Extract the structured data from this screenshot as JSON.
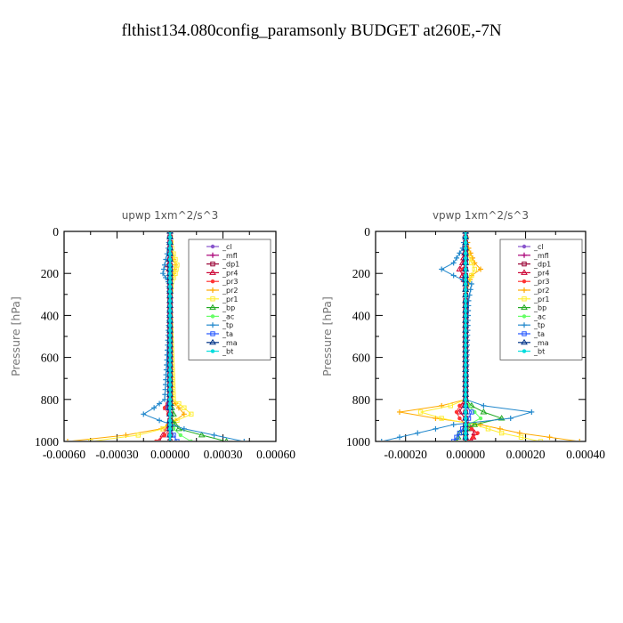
{
  "figure": {
    "title": "flthist134.080config_paramsonly  BUDGET at260E,-7N"
  },
  "chart_data": [
    {
      "type": "line",
      "title": "upwp   1xm^2/s^3",
      "ylabel": "Pressure [hPa]",
      "xlim": [
        -0.0006,
        0.0006
      ],
      "ylim": [
        1000,
        0
      ],
      "y_inverted": true,
      "xticks": [
        "-0.00060",
        "-0.00030",
        "0.00000",
        "0.00030",
        "0.00060"
      ],
      "yticks": [
        "0",
        "200",
        "400",
        "600",
        "800",
        "1000"
      ],
      "legend_position": "top-right",
      "y": [
        0,
        80,
        160,
        200,
        240,
        330,
        800,
        840,
        870,
        900,
        940,
        970,
        1000
      ],
      "series": [
        {
          "name": "_cl",
          "color": "#8855cc",
          "values": [
            0,
            0,
            0,
            0,
            0,
            0,
            0,
            0,
            0,
            0,
            0,
            0,
            0
          ]
        },
        {
          "name": "_mfl",
          "color": "#aa0077",
          "values": [
            0,
            0,
            0,
            0,
            0,
            0,
            0,
            0,
            0,
            0,
            0,
            0,
            0
          ]
        },
        {
          "name": "_dp1",
          "color": "#990033",
          "values": [
            0,
            0,
            0,
            0,
            0,
            0,
            0,
            0,
            0,
            0,
            0,
            0,
            0
          ]
        },
        {
          "name": "_pr4",
          "color": "#cc0033",
          "values": [
            0,
            0,
            -1e-05,
            0,
            0,
            0,
            0,
            -2e-05,
            0,
            0,
            -2e-05,
            -4e-05,
            -6e-05
          ]
        },
        {
          "name": "_pr3",
          "color": "#ff3333",
          "values": [
            0,
            0,
            0,
            0,
            0,
            0,
            0,
            -3e-05,
            -1e-05,
            0,
            0,
            -3e-05,
            -8e-05
          ]
        },
        {
          "name": "_pr2",
          "color": "#ffaa00",
          "values": [
            0,
            0,
            3e-05,
            2e-05,
            0,
            0,
            1e-05,
            5e-05,
            8e-05,
            3e-05,
            -5e-05,
            -0.00025,
            -0.00058
          ]
        },
        {
          "name": "_pr1",
          "color": "#ffee33",
          "values": [
            0,
            1e-05,
            4e-05,
            3e-05,
            1e-05,
            0,
            2e-05,
            8e-05,
            0.00012,
            4e-05,
            -4e-05,
            -0.00018,
            -0.00045
          ]
        },
        {
          "name": "_bp",
          "color": "#22aa22",
          "values": [
            0,
            0,
            0,
            0,
            0,
            0,
            0,
            1e-05,
            2e-05,
            1e-05,
            5e-05,
            0.00018,
            0.00032
          ]
        },
        {
          "name": "_ac",
          "color": "#66ff66",
          "values": [
            0,
            0,
            0,
            0,
            0,
            0,
            0,
            0,
            0,
            0,
            2e-05,
            6e-05,
            0.00012
          ]
        },
        {
          "name": "_tp",
          "color": "#2288cc",
          "values": [
            0,
            -1e-05,
            -3e-05,
            -4e-05,
            -1e-05,
            0,
            -3e-05,
            -9e-05,
            -0.00015,
            -6e-05,
            8e-05,
            0.00025,
            0.00042
          ]
        },
        {
          "name": "_ta",
          "color": "#2255ff",
          "values": [
            0,
            0,
            0,
            0,
            0,
            0,
            0,
            -1e-05,
            0,
            0,
            0,
            2e-05,
            4e-05
          ]
        },
        {
          "name": "_ma",
          "color": "#003388",
          "values": [
            0,
            0,
            0,
            0,
            0,
            0,
            0,
            0,
            0,
            0,
            0,
            0,
            0
          ]
        },
        {
          "name": "_bt",
          "color": "#00dddd",
          "values": [
            0,
            0,
            0,
            0,
            0,
            0,
            0,
            0,
            0,
            0,
            0,
            0,
            0
          ]
        }
      ]
    },
    {
      "type": "line",
      "title": "vpwp   1xm^2/s^3",
      "ylabel": "Pressure [hPa]",
      "xlim": [
        -0.0003,
        0.0004
      ],
      "ylim": [
        1000,
        0
      ],
      "y_inverted": true,
      "xticks": [
        "-0.00020",
        "0.00000",
        "0.00020",
        "0.00040"
      ],
      "yticks": [
        "0",
        "200",
        "400",
        "600",
        "800",
        "1000"
      ],
      "legend_position": "top-right",
      "y": [
        0,
        80,
        150,
        180,
        210,
        250,
        330,
        800,
        830,
        860,
        890,
        920,
        960,
        1000
      ],
      "series": [
        {
          "name": "_cl",
          "color": "#8855cc",
          "values": [
            0,
            0,
            0,
            0,
            0,
            0,
            0,
            0,
            0,
            0,
            0,
            0,
            0,
            0
          ]
        },
        {
          "name": "_mfl",
          "color": "#aa0077",
          "values": [
            0,
            0,
            0,
            0,
            0,
            0,
            0,
            0,
            0,
            0,
            0,
            0,
            0,
            0
          ]
        },
        {
          "name": "_dp1",
          "color": "#990033",
          "values": [
            0,
            0,
            0,
            0,
            0,
            0,
            0,
            0,
            0,
            0,
            0,
            0,
            0,
            0
          ]
        },
        {
          "name": "_pr4",
          "color": "#cc0033",
          "values": [
            0,
            0,
            -1e-05,
            -2e-05,
            -1e-05,
            0,
            0,
            0,
            -1e-05,
            -2e-05,
            0,
            1e-05,
            3e-05,
            2e-05
          ]
        },
        {
          "name": "_pr3",
          "color": "#ff3333",
          "values": [
            0,
            0,
            0,
            -1e-05,
            0,
            0,
            0,
            0,
            -2e-05,
            -3e-05,
            -2e-05,
            0,
            4e-05,
            1e-05
          ]
        },
        {
          "name": "_pr2",
          "color": "#ffaa00",
          "values": [
            0,
            1e-05,
            3e-05,
            5e-05,
            2e-05,
            1e-05,
            0,
            0,
            -8e-05,
            -0.00022,
            -0.0001,
            5e-05,
            0.00018,
            0.00038
          ]
        },
        {
          "name": "_pr1",
          "color": "#ffee33",
          "values": [
            0,
            0,
            2e-05,
            3e-05,
            2e-05,
            0,
            0,
            0,
            -5e-05,
            -0.00015,
            -8e-05,
            3e-05,
            0.00012,
            0.00025
          ]
        },
        {
          "name": "_bp",
          "color": "#22aa22",
          "values": [
            0,
            0,
            0,
            0,
            0,
            0,
            0,
            0,
            2e-05,
            6e-05,
            0.00012,
            3e-05,
            -2e-05,
            -3e-05
          ]
        },
        {
          "name": "_ac",
          "color": "#66ff66",
          "values": [
            0,
            0,
            0,
            0,
            0,
            0,
            0,
            0,
            1e-05,
            3e-05,
            5e-05,
            1e-05,
            0,
            0
          ]
        },
        {
          "name": "_tp",
          "color": "#2288cc",
          "values": [
            0,
            -1e-05,
            -4e-05,
            -8e-05,
            -4e-05,
            2e-05,
            1e-05,
            0,
            6e-05,
            0.00022,
            0.00015,
            -4e-05,
            -0.00016,
            -0.00028
          ]
        },
        {
          "name": "_ta",
          "color": "#2255ff",
          "values": [
            0,
            0,
            0,
            0,
            0,
            0,
            0,
            0,
            0,
            2e-05,
            1e-05,
            0,
            -2e-05,
            -4e-05
          ]
        },
        {
          "name": "_ma",
          "color": "#003388",
          "values": [
            0,
            0,
            0,
            0,
            0,
            0,
            0,
            0,
            0,
            0,
            0,
            0,
            0,
            0
          ]
        },
        {
          "name": "_bt",
          "color": "#00dddd",
          "values": [
            0,
            0,
            0,
            0,
            0,
            0,
            0,
            0,
            0,
            0,
            0,
            0,
            0,
            0
          ]
        }
      ]
    }
  ]
}
